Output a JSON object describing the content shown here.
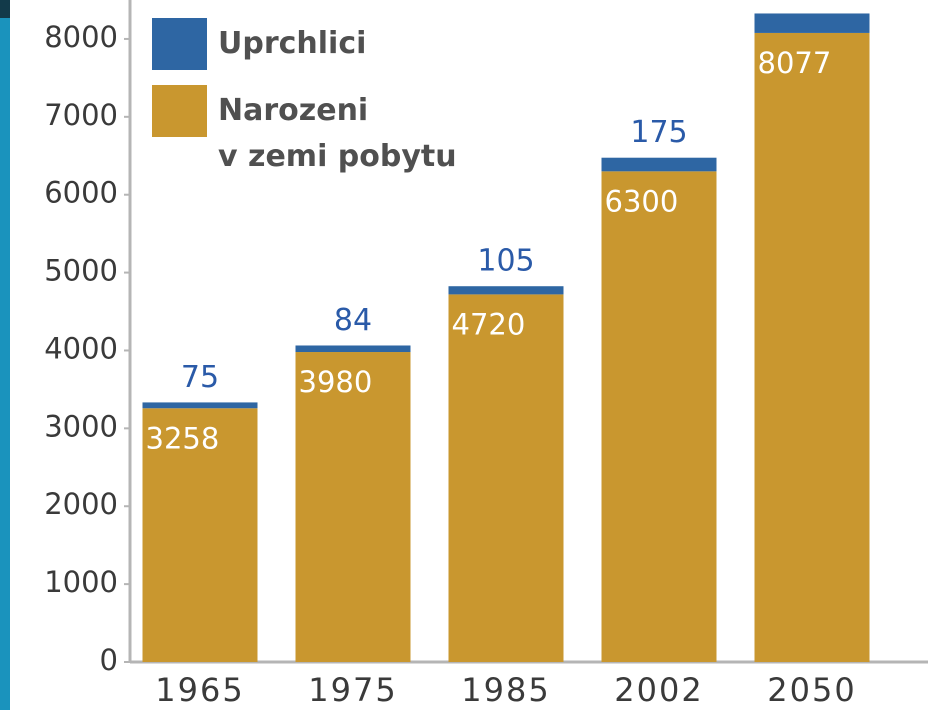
{
  "chart_data": {
    "type": "stacked_bar",
    "categories": [
      "1965",
      "1975",
      "1985",
      "2002",
      "2050"
    ],
    "series": [
      {
        "name": "Uprchlici",
        "color": "#2e66a3",
        "values": [
          75,
          84,
          105,
          175,
          250
        ]
      },
      {
        "name": "Narozeni\nv zemi pobytu",
        "color": "#c9972f",
        "values": [
          3258,
          3980,
          4720,
          6300,
          8077
        ]
      }
    ],
    "ylim": [
      0,
      8500
    ],
    "yticks": [
      0,
      1000,
      2000,
      3000,
      4000,
      5000,
      6000,
      7000,
      8000
    ],
    "legend": "upper-left"
  }
}
